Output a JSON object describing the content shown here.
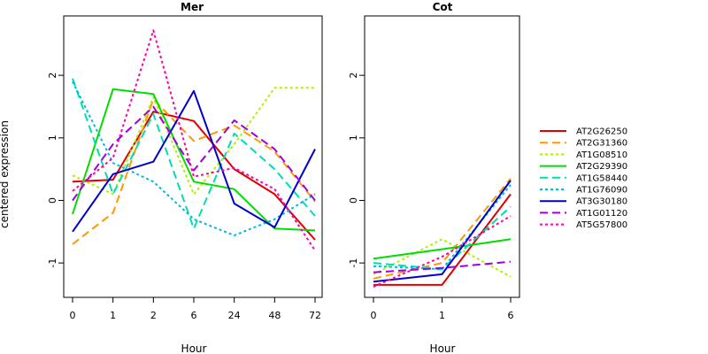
{
  "chart_data": [
    {
      "type": "line",
      "title": "Mer",
      "xlabel": "Hour",
      "ylabel": "centered expression",
      "categories": [
        "0",
        "1",
        "2",
        "6",
        "24",
        "48",
        "72"
      ],
      "yticks": [
        "-1",
        "0",
        "1",
        "2"
      ],
      "ylim": [
        -1.55,
        2.95
      ],
      "grid": false,
      "series": [
        {
          "name": "AT2G26250",
          "color": "#e00000",
          "dash": "solid",
          "values": [
            0.3,
            0.33,
            1.42,
            1.27,
            0.5,
            0.1,
            -0.63
          ]
        },
        {
          "name": "AT2G31360",
          "color": "#ff9900",
          "dash": "long",
          "values": [
            -0.7,
            -0.2,
            1.62,
            0.95,
            1.2,
            0.78,
            -0.02
          ]
        },
        {
          "name": "AT1G08510",
          "color": "#b0f000",
          "dash": "short",
          "values": [
            0.4,
            0.1,
            1.65,
            0.1,
            0.9,
            1.8,
            1.8
          ]
        },
        {
          "name": "AT2G29390",
          "color": "#00dd00",
          "dash": "solid",
          "values": [
            -0.22,
            1.78,
            1.7,
            0.3,
            0.18,
            -0.45,
            -0.48
          ]
        },
        {
          "name": "AT1G58440",
          "color": "#00ddb0",
          "dash": "long",
          "values": [
            1.95,
            0.1,
            1.38,
            -0.45,
            1.07,
            0.5,
            -0.25
          ]
        },
        {
          "name": "AT1G76090",
          "color": "#00b8e0",
          "dash": "short",
          "values": [
            1.9,
            0.6,
            0.3,
            -0.3,
            -0.56,
            -0.3,
            0.1
          ]
        },
        {
          "name": "AT3G30180",
          "color": "#0000cc",
          "dash": "solid",
          "values": [
            -0.5,
            0.42,
            0.62,
            1.75,
            -0.05,
            -0.43,
            0.82
          ]
        },
        {
          "name": "AT1G01120",
          "color": "#a000e0",
          "dash": "long",
          "values": [
            0.0,
            0.9,
            1.5,
            0.48,
            1.28,
            0.82,
            0.0
          ]
        },
        {
          "name": "AT5G57800",
          "color": "#ff00aa",
          "dash": "short",
          "values": [
            0.15,
            0.68,
            2.72,
            0.38,
            0.52,
            0.18,
            -0.8
          ]
        }
      ]
    },
    {
      "type": "line",
      "title": "Cot",
      "xlabel": "Hour",
      "ylabel": "",
      "categories": [
        "0",
        "1",
        "6"
      ],
      "yticks": [
        "-1",
        "0",
        "1",
        "2"
      ],
      "ylim": [
        -1.55,
        2.95
      ],
      "grid": false,
      "series": [
        {
          "name": "AT2G26250",
          "color": "#e00000",
          "dash": "solid",
          "values": [
            -1.35,
            -1.35,
            0.1
          ]
        },
        {
          "name": "AT2G31360",
          "color": "#ff9900",
          "dash": "long",
          "values": [
            -1.25,
            -1.0,
            0.35
          ]
        },
        {
          "name": "AT1G08510",
          "color": "#b0f000",
          "dash": "short",
          "values": [
            -1.18,
            -0.62,
            -1.22
          ]
        },
        {
          "name": "AT2G29390",
          "color": "#00dd00",
          "dash": "solid",
          "values": [
            -0.93,
            -0.78,
            -0.62
          ]
        },
        {
          "name": "AT1G58440",
          "color": "#00ddb0",
          "dash": "long",
          "values": [
            -1.0,
            -1.1,
            -0.1
          ]
        },
        {
          "name": "AT1G76090",
          "color": "#00b8e0",
          "dash": "short",
          "values": [
            -1.05,
            -1.1,
            0.25
          ]
        },
        {
          "name": "AT3G30180",
          "color": "#0000cc",
          "dash": "solid",
          "values": [
            -1.3,
            -1.18,
            0.32
          ]
        },
        {
          "name": "AT1G01120",
          "color": "#a000e0",
          "dash": "long",
          "values": [
            -1.15,
            -1.08,
            -0.98
          ]
        },
        {
          "name": "AT5G57800",
          "color": "#ff00aa",
          "dash": "short",
          "values": [
            -1.38,
            -0.9,
            -0.25
          ]
        }
      ]
    }
  ],
  "legend": {
    "placement": "right",
    "items": [
      {
        "label": "AT2G26250",
        "color": "#e00000",
        "dash": "solid"
      },
      {
        "label": "AT2G31360",
        "color": "#ff9900",
        "dash": "long"
      },
      {
        "label": "AT1G08510",
        "color": "#b0f000",
        "dash": "short"
      },
      {
        "label": "AT2G29390",
        "color": "#00dd00",
        "dash": "solid"
      },
      {
        "label": "AT1G58440",
        "color": "#00ddb0",
        "dash": "long"
      },
      {
        "label": "AT1G76090",
        "color": "#00b8e0",
        "dash": "short"
      },
      {
        "label": "AT3G30180",
        "color": "#0000cc",
        "dash": "solid"
      },
      {
        "label": "AT1G01120",
        "color": "#a000e0",
        "dash": "long"
      },
      {
        "label": "AT5G57800",
        "color": "#ff00aa",
        "dash": "short"
      }
    ]
  }
}
